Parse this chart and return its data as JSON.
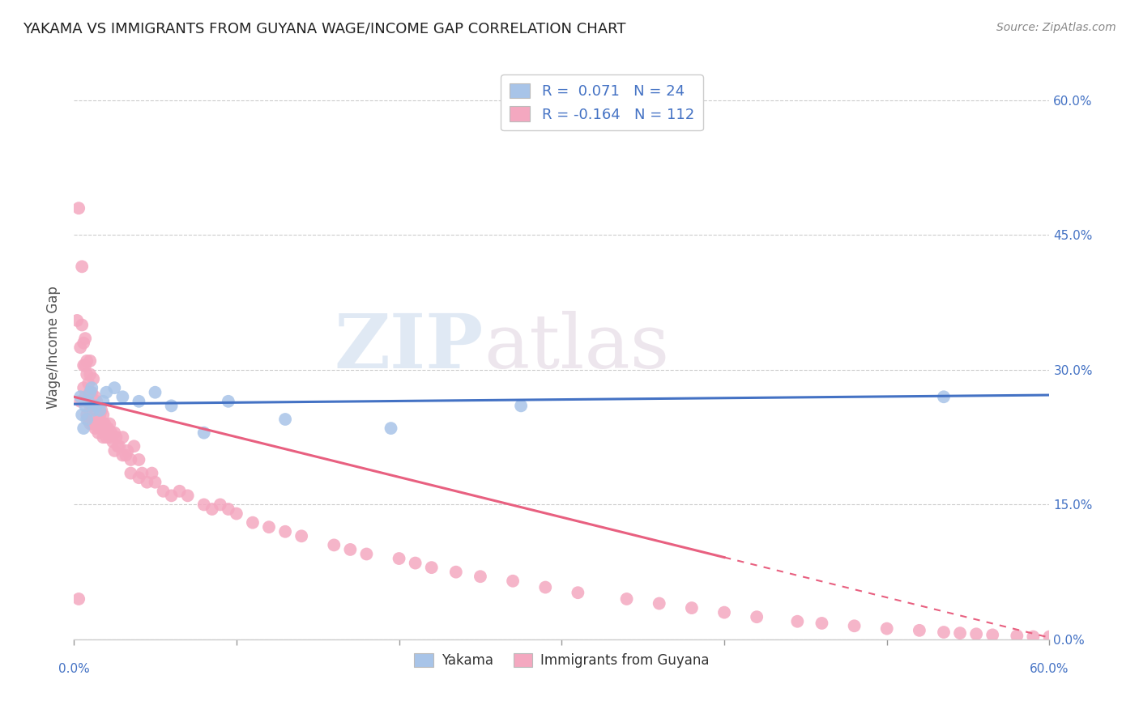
{
  "title": "YAKAMA VS IMMIGRANTS FROM GUYANA WAGE/INCOME GAP CORRELATION CHART",
  "source": "Source: ZipAtlas.com",
  "ylabel_label": "Wage/Income Gap",
  "xlim": [
    0.0,
    0.6
  ],
  "ylim": [
    0.0,
    0.65
  ],
  "watermark_zip": "ZIP",
  "watermark_atlas": "atlas",
  "yakama_color": "#a8c4e8",
  "guyana_color": "#f4a8c0",
  "trend_blue": "#4472c4",
  "trend_pink": "#e86080",
  "yakama_scatter_x": [
    0.004,
    0.005,
    0.006,
    0.007,
    0.008,
    0.009,
    0.01,
    0.011,
    0.012,
    0.014,
    0.016,
    0.018,
    0.02,
    0.025,
    0.03,
    0.04,
    0.05,
    0.06,
    0.08,
    0.095,
    0.13,
    0.195,
    0.275,
    0.535
  ],
  "yakama_scatter_y": [
    0.27,
    0.25,
    0.235,
    0.26,
    0.245,
    0.265,
    0.275,
    0.28,
    0.255,
    0.26,
    0.255,
    0.265,
    0.275,
    0.28,
    0.27,
    0.265,
    0.275,
    0.26,
    0.23,
    0.265,
    0.245,
    0.235,
    0.26,
    0.27
  ],
  "guyana_scatter_x": [
    0.003,
    0.004,
    0.004,
    0.005,
    0.005,
    0.006,
    0.006,
    0.006,
    0.007,
    0.007,
    0.007,
    0.008,
    0.008,
    0.008,
    0.008,
    0.009,
    0.009,
    0.009,
    0.01,
    0.01,
    0.01,
    0.01,
    0.01,
    0.011,
    0.011,
    0.011,
    0.012,
    0.012,
    0.012,
    0.013,
    0.013,
    0.013,
    0.014,
    0.014,
    0.015,
    0.015,
    0.015,
    0.016,
    0.016,
    0.017,
    0.017,
    0.018,
    0.018,
    0.018,
    0.019,
    0.02,
    0.02,
    0.021,
    0.022,
    0.022,
    0.023,
    0.024,
    0.025,
    0.025,
    0.026,
    0.027,
    0.028,
    0.03,
    0.03,
    0.032,
    0.033,
    0.035,
    0.035,
    0.037,
    0.04,
    0.04,
    0.042,
    0.045,
    0.048,
    0.05,
    0.055,
    0.06,
    0.065,
    0.07,
    0.08,
    0.085,
    0.09,
    0.095,
    0.1,
    0.11,
    0.12,
    0.13,
    0.14,
    0.16,
    0.17,
    0.18,
    0.2,
    0.21,
    0.22,
    0.235,
    0.25,
    0.27,
    0.29,
    0.31,
    0.34,
    0.36,
    0.38,
    0.4,
    0.42,
    0.445,
    0.46,
    0.48,
    0.5,
    0.52,
    0.535,
    0.545,
    0.555,
    0.565,
    0.58,
    0.59,
    0.6,
    0.002,
    0.003
  ],
  "guyana_scatter_y": [
    0.48,
    0.325,
    0.265,
    0.415,
    0.35,
    0.33,
    0.305,
    0.28,
    0.335,
    0.305,
    0.27,
    0.31,
    0.295,
    0.265,
    0.25,
    0.285,
    0.27,
    0.245,
    0.31,
    0.295,
    0.275,
    0.26,
    0.24,
    0.275,
    0.26,
    0.24,
    0.29,
    0.265,
    0.245,
    0.27,
    0.25,
    0.235,
    0.265,
    0.245,
    0.26,
    0.245,
    0.23,
    0.25,
    0.235,
    0.255,
    0.24,
    0.25,
    0.24,
    0.225,
    0.24,
    0.235,
    0.225,
    0.235,
    0.24,
    0.225,
    0.23,
    0.22,
    0.21,
    0.23,
    0.225,
    0.215,
    0.215,
    0.205,
    0.225,
    0.205,
    0.21,
    0.185,
    0.2,
    0.215,
    0.18,
    0.2,
    0.185,
    0.175,
    0.185,
    0.175,
    0.165,
    0.16,
    0.165,
    0.16,
    0.15,
    0.145,
    0.15,
    0.145,
    0.14,
    0.13,
    0.125,
    0.12,
    0.115,
    0.105,
    0.1,
    0.095,
    0.09,
    0.085,
    0.08,
    0.075,
    0.07,
    0.065,
    0.058,
    0.052,
    0.045,
    0.04,
    0.035,
    0.03,
    0.025,
    0.02,
    0.018,
    0.015,
    0.012,
    0.01,
    0.008,
    0.007,
    0.006,
    0.005,
    0.004,
    0.003,
    0.003,
    0.355,
    0.045
  ],
  "trend_blue_x0": 0.0,
  "trend_blue_x1": 0.6,
  "trend_blue_y0": 0.262,
  "trend_blue_y1": 0.272,
  "trend_pink_x0": 0.0,
  "trend_pink_x1": 0.6,
  "trend_pink_y0": 0.27,
  "trend_pink_y1": 0.002,
  "trend_solid_end": 0.4,
  "trend_dashed_start": 0.4
}
